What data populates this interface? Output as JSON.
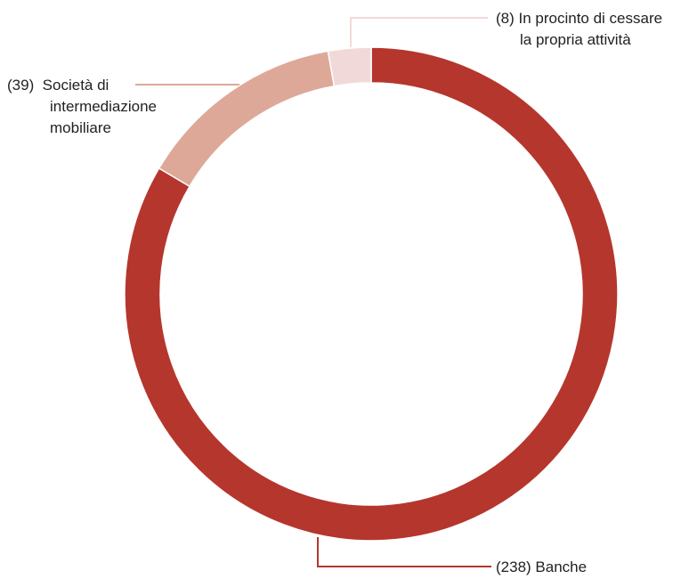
{
  "chart_data": {
    "type": "pie",
    "style": "donut",
    "title": "",
    "slices": [
      {
        "label_lines": [
          "(238) Banche"
        ],
        "value": 238,
        "color": "#b5362d"
      },
      {
        "label_lines": [
          "(39)  Società di",
          "intermediazione",
          "mobiliare"
        ],
        "value": 39,
        "color": "#dea898"
      },
      {
        "label_lines": [
          "(8) In procinto di cessare",
          "la propria attività"
        ],
        "value": 8,
        "color": "#f2d9d9"
      }
    ]
  }
}
